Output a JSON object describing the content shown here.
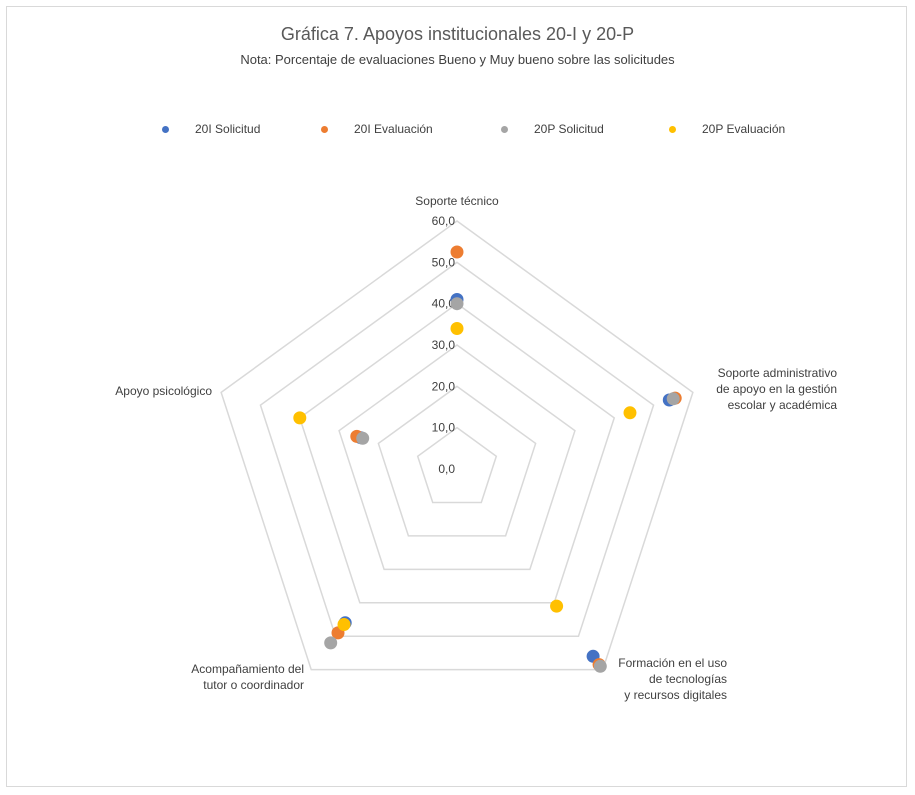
{
  "chart_data": {
    "type": "radar",
    "title": "Gráfica 7. Apoyos institucionales 20-I y 20-P",
    "subtitle": "Nota: Porcentaje de evaluaciones Bueno y Muy bueno sobre las solicitudes",
    "categories": [
      [
        "Soporte técnico"
      ],
      [
        "Soporte administrativo",
        "de apoyo en la gestión",
        "escolar y académica"
      ],
      [
        "Formación en el uso",
        "de tecnologías",
        "y recursos digitales"
      ],
      [
        "Acompañamiento del",
        "tutor o coordinador"
      ],
      [
        "Apoyo psicológico"
      ]
    ],
    "rlim": [
      0,
      60
    ],
    "ticks": [
      "0,0",
      "10,0",
      "20,0",
      "30,0",
      "40,0",
      "50,0",
      "60,0"
    ],
    "legend_position": "top",
    "grid": true,
    "series": [
      {
        "name": "20I Solicitud",
        "color": "#4472c4",
        "values": [
          41.0,
          54.0,
          56.0,
          46.0,
          24.5
        ]
      },
      {
        "name": "20I Evaluación",
        "color": "#ed7d31",
        "values": [
          52.5,
          55.5,
          58.5,
          49.0,
          25.5
        ]
      },
      {
        "name": "20P Solicitud",
        "color": "#a5a5a5",
        "values": [
          40.0,
          55.0,
          59.0,
          52.0,
          24.0
        ]
      },
      {
        "name": "20P Evaluación",
        "color": "#ffc000",
        "values": [
          34.0,
          44.0,
          41.0,
          46.5,
          40.0
        ]
      }
    ]
  }
}
